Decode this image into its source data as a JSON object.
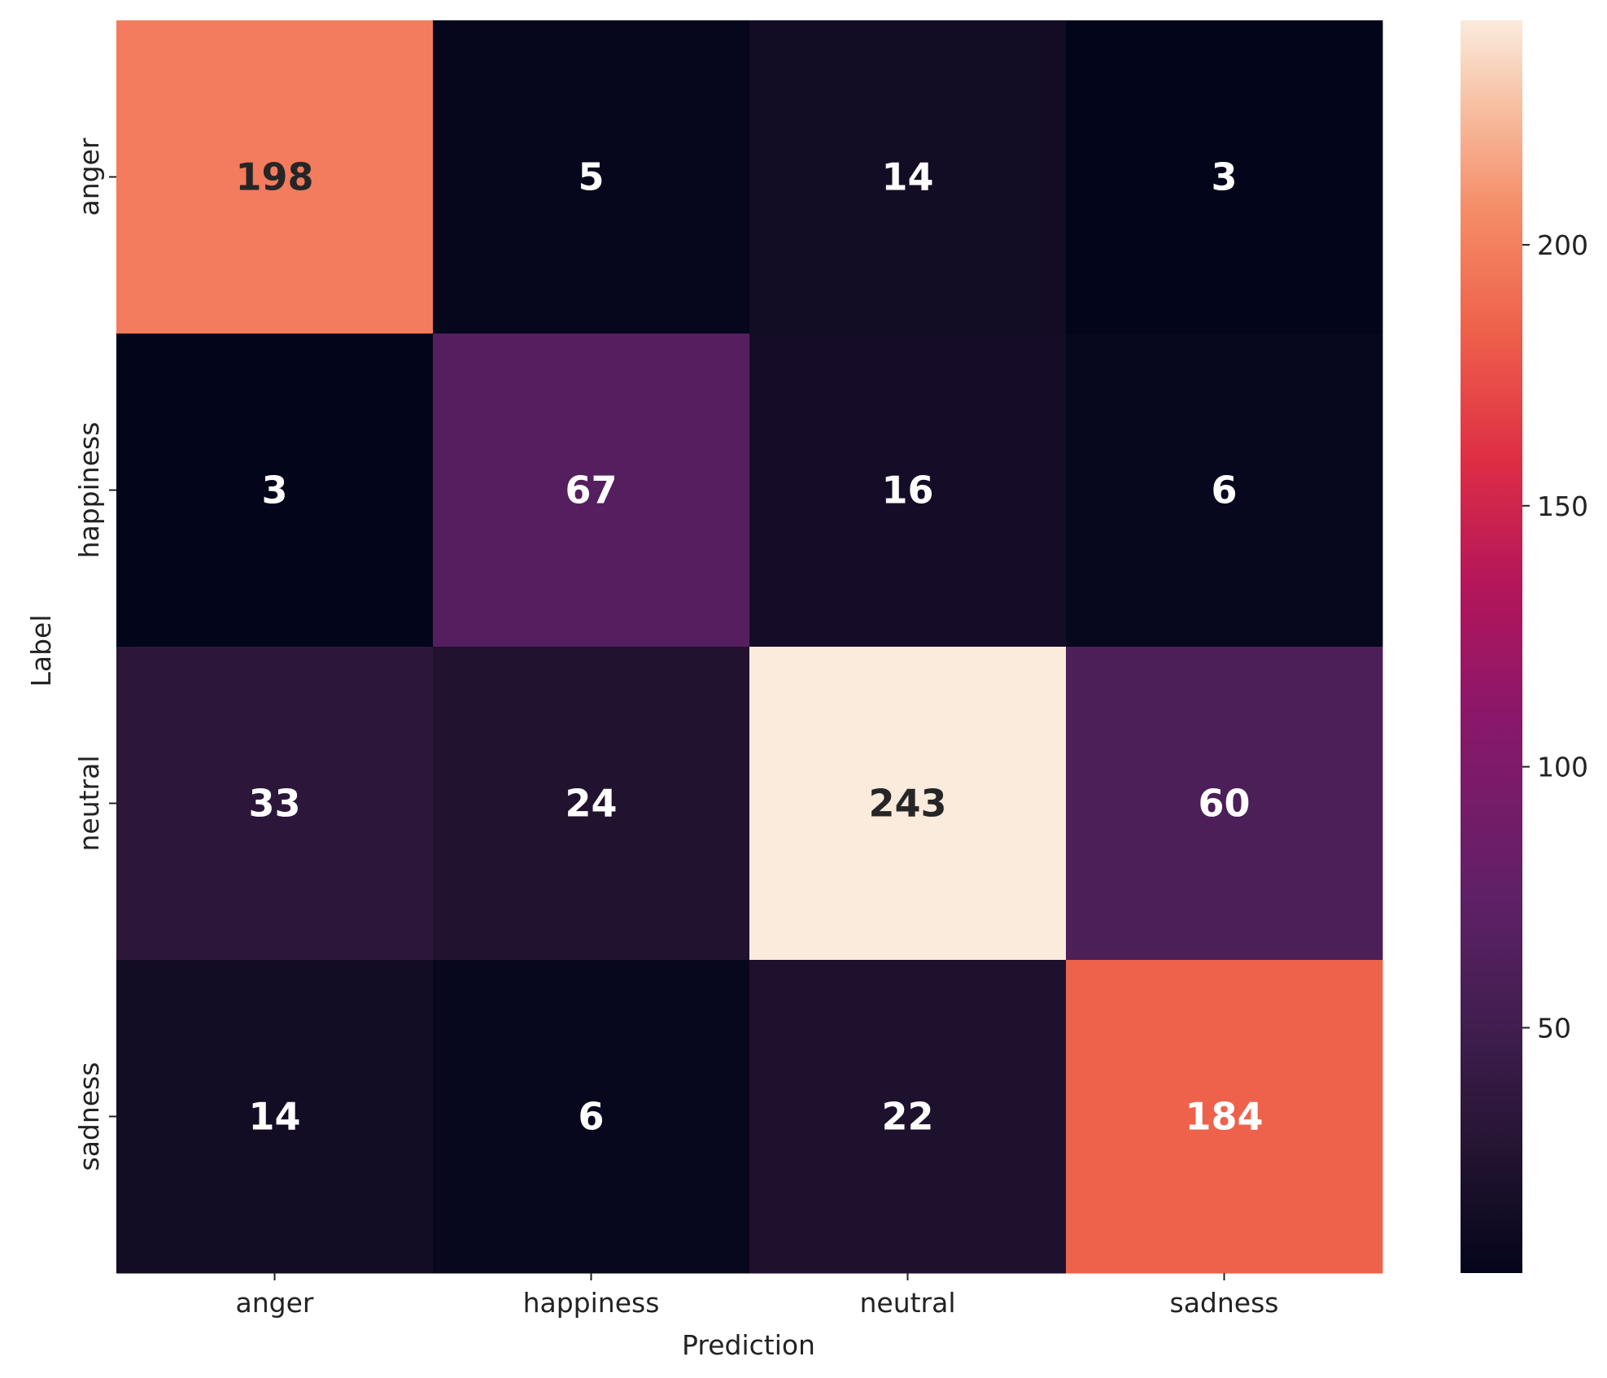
{
  "chart_data": {
    "type": "heatmap",
    "title": "",
    "xlabel": "Prediction",
    "ylabel": "Label",
    "x_categories": [
      "anger",
      "happiness",
      "neutral",
      "sadness"
    ],
    "y_categories": [
      "anger",
      "happiness",
      "neutral",
      "sadness"
    ],
    "values": [
      [
        198,
        5,
        14,
        3
      ],
      [
        3,
        67,
        16,
        6
      ],
      [
        33,
        24,
        243,
        60
      ],
      [
        14,
        6,
        22,
        184
      ]
    ],
    "colormap": "rocket",
    "value_range": [
      3,
      243
    ],
    "colorbar_ticks": [
      50,
      100,
      150,
      200
    ],
    "colors": {
      "annotation_dark": "#262626",
      "annotation_light": "#ffffff"
    }
  }
}
